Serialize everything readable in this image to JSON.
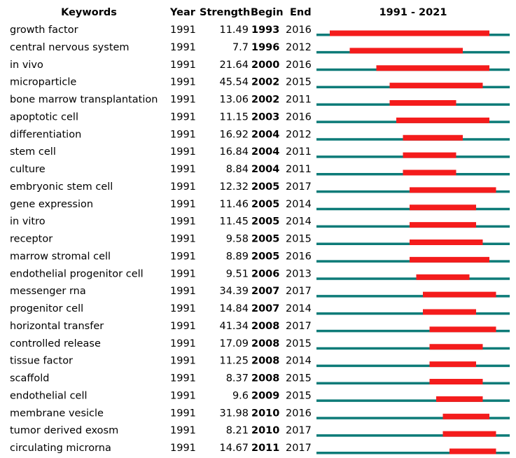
{
  "chart_data": {
    "type": "burst",
    "headers": {
      "keyword": "Keywords",
      "year": "Year",
      "strength": "Strength",
      "begin": "Begin",
      "end": "End",
      "period": "1991 - 2021"
    },
    "xlim": [
      1991,
      2021
    ],
    "colors": {
      "line": "#0d7b78",
      "burst": "#f41c1c"
    },
    "rows": [
      {
        "keyword": "growth factor",
        "year": 1991,
        "strength": 11.49,
        "begin": 1993,
        "end": 2016
      },
      {
        "keyword": "central nervous system",
        "year": 1991,
        "strength": 7.7,
        "begin": 1996,
        "end": 2012
      },
      {
        "keyword": "in vivo",
        "year": 1991,
        "strength": 21.64,
        "begin": 2000,
        "end": 2016
      },
      {
        "keyword": "microparticle",
        "year": 1991,
        "strength": 45.54,
        "begin": 2002,
        "end": 2015
      },
      {
        "keyword": "bone marrow transplantation",
        "year": 1991,
        "strength": 13.06,
        "begin": 2002,
        "end": 2011
      },
      {
        "keyword": "apoptotic cell",
        "year": 1991,
        "strength": 11.15,
        "begin": 2003,
        "end": 2016
      },
      {
        "keyword": "differentiation",
        "year": 1991,
        "strength": 16.92,
        "begin": 2004,
        "end": 2012
      },
      {
        "keyword": "stem cell",
        "year": 1991,
        "strength": 16.84,
        "begin": 2004,
        "end": 2011
      },
      {
        "keyword": "culture",
        "year": 1991,
        "strength": 8.84,
        "begin": 2004,
        "end": 2011
      },
      {
        "keyword": "embryonic stem cell",
        "year": 1991,
        "strength": 12.32,
        "begin": 2005,
        "end": 2017
      },
      {
        "keyword": "gene expression",
        "year": 1991,
        "strength": 11.46,
        "begin": 2005,
        "end": 2014
      },
      {
        "keyword": "in vitro",
        "year": 1991,
        "strength": 11.45,
        "begin": 2005,
        "end": 2014
      },
      {
        "keyword": "receptor",
        "year": 1991,
        "strength": 9.58,
        "begin": 2005,
        "end": 2015
      },
      {
        "keyword": "marrow stromal cell",
        "year": 1991,
        "strength": 8.89,
        "begin": 2005,
        "end": 2016
      },
      {
        "keyword": "endothelial progenitor cell",
        "year": 1991,
        "strength": 9.51,
        "begin": 2006,
        "end": 2013
      },
      {
        "keyword": "messenger rna",
        "year": 1991,
        "strength": 34.39,
        "begin": 2007,
        "end": 2017
      },
      {
        "keyword": "progenitor cell",
        "year": 1991,
        "strength": 14.84,
        "begin": 2007,
        "end": 2014
      },
      {
        "keyword": "horizontal transfer",
        "year": 1991,
        "strength": 41.34,
        "begin": 2008,
        "end": 2017
      },
      {
        "keyword": "controlled release",
        "year": 1991,
        "strength": 17.09,
        "begin": 2008,
        "end": 2015
      },
      {
        "keyword": "tissue factor",
        "year": 1991,
        "strength": 11.25,
        "begin": 2008,
        "end": 2014
      },
      {
        "keyword": "scaffold",
        "year": 1991,
        "strength": 8.37,
        "begin": 2008,
        "end": 2015
      },
      {
        "keyword": "endothelial cell",
        "year": 1991,
        "strength": 9.6,
        "begin": 2009,
        "end": 2015
      },
      {
        "keyword": "membrane vesicle",
        "year": 1991,
        "strength": 31.98,
        "begin": 2010,
        "end": 2016
      },
      {
        "keyword": "tumor derived exosm",
        "year": 1991,
        "strength": 8.21,
        "begin": 2010,
        "end": 2017
      },
      {
        "keyword": "circulating microrna",
        "year": 1991,
        "strength": 14.67,
        "begin": 2011,
        "end": 2017
      }
    ]
  }
}
